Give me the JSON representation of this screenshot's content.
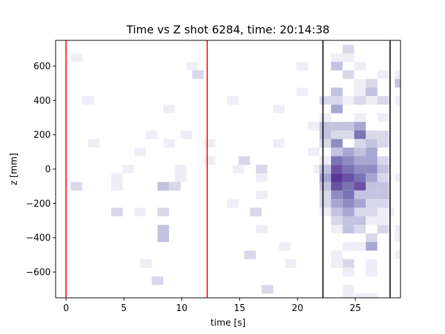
{
  "chart_data": {
    "type": "heatmap",
    "title": "Time vs Z shot 6284, time: 20:14:38",
    "xlabel": "time [s]",
    "ylabel": "z [mm]",
    "xlim": [
      -0.9,
      28.9
    ],
    "ylim": [
      -750,
      750
    ],
    "xticks": [
      0,
      5,
      10,
      15,
      20,
      25
    ],
    "yticks": [
      -600,
      -400,
      -200,
      0,
      200,
      400,
      600
    ],
    "colormap": "Purples",
    "bin_width_s": 1.0,
    "bin_height_mm": 50,
    "vlines": [
      {
        "x": 0.0,
        "color": "#ff0000"
      },
      {
        "x": 12.2,
        "color": "#ff0000"
      },
      {
        "x": 22.2,
        "color": "#000000"
      },
      {
        "x": 28.0,
        "color": "#000000"
      }
    ],
    "cells": [
      [
        0.4,
        650,
        1
      ],
      [
        0.4,
        -100,
        2
      ],
      [
        1.4,
        400,
        1
      ],
      [
        1.9,
        150,
        1
      ],
      [
        3.9,
        -50,
        1
      ],
      [
        3.9,
        -250,
        2
      ],
      [
        3.9,
        -100,
        1
      ],
      [
        4.9,
        0,
        1
      ],
      [
        5.9,
        100,
        1
      ],
      [
        5.9,
        -250,
        1
      ],
      [
        6.4,
        -550,
        1
      ],
      [
        6.9,
        200,
        1
      ],
      [
        7.4,
        -650,
        2
      ],
      [
        7.9,
        -100,
        3
      ],
      [
        7.9,
        -250,
        2
      ],
      [
        7.9,
        -350,
        3
      ],
      [
        7.9,
        -400,
        3
      ],
      [
        8.4,
        150,
        1
      ],
      [
        8.9,
        -100,
        2
      ],
      [
        8.4,
        350,
        1
      ],
      [
        9.4,
        -50,
        1
      ],
      [
        9.4,
        0,
        1
      ],
      [
        9.9,
        200,
        1
      ],
      [
        10.4,
        600,
        1
      ],
      [
        10.9,
        550,
        2
      ],
      [
        11.9,
        150,
        1
      ],
      [
        11.9,
        50,
        1
      ],
      [
        13.9,
        400,
        1
      ],
      [
        13.9,
        -200,
        1
      ],
      [
        14.4,
        0,
        1
      ],
      [
        14.9,
        50,
        2
      ],
      [
        15.4,
        -500,
        2
      ],
      [
        15.9,
        -250,
        2
      ],
      [
        16.4,
        0,
        2
      ],
      [
        16.4,
        -50,
        1
      ],
      [
        16.4,
        -150,
        1
      ],
      [
        16.4,
        -350,
        1
      ],
      [
        16.9,
        -700,
        2
      ],
      [
        17.9,
        350,
        1
      ],
      [
        17.9,
        150,
        1
      ],
      [
        18.4,
        -450,
        1
      ],
      [
        18.9,
        -550,
        1
      ],
      [
        19.9,
        600,
        1
      ],
      [
        19.9,
        450,
        1
      ],
      [
        20.9,
        250,
        1
      ],
      [
        20.9,
        100,
        1
      ],
      [
        21.4,
        0,
        1
      ],
      [
        21.9,
        400,
        2
      ],
      [
        21.9,
        300,
        1
      ],
      [
        21.9,
        250,
        3
      ],
      [
        21.9,
        200,
        3
      ],
      [
        21.9,
        150,
        2
      ],
      [
        21.9,
        50,
        1
      ],
      [
        21.9,
        0,
        3
      ],
      [
        21.9,
        -50,
        4
      ],
      [
        21.9,
        -100,
        3
      ],
      [
        21.9,
        -150,
        2
      ],
      [
        21.9,
        -200,
        2
      ],
      [
        21.9,
        -250,
        1
      ],
      [
        22.9,
        650,
        1
      ],
      [
        22.9,
        600,
        3
      ],
      [
        22.9,
        450,
        3
      ],
      [
        22.9,
        400,
        2
      ],
      [
        22.9,
        350,
        4
      ],
      [
        22.9,
        250,
        3
      ],
      [
        22.9,
        200,
        2
      ],
      [
        22.9,
        150,
        5
      ],
      [
        22.9,
        100,
        3
      ],
      [
        22.9,
        50,
        6
      ],
      [
        22.9,
        0,
        7
      ],
      [
        22.9,
        -50,
        8
      ],
      [
        22.9,
        -100,
        7
      ],
      [
        22.9,
        -150,
        5
      ],
      [
        22.9,
        -200,
        4
      ],
      [
        22.9,
        -250,
        3
      ],
      [
        22.9,
        -300,
        2
      ],
      [
        22.9,
        -350,
        1
      ],
      [
        22.9,
        -500,
        1
      ],
      [
        22.9,
        -550,
        1
      ],
      [
        23.9,
        700,
        2
      ],
      [
        23.9,
        650,
        1
      ],
      [
        23.9,
        550,
        2
      ],
      [
        23.9,
        400,
        1
      ],
      [
        23.9,
        250,
        3
      ],
      [
        23.9,
        200,
        2
      ],
      [
        23.9,
        100,
        4
      ],
      [
        23.9,
        50,
        5
      ],
      [
        23.9,
        0,
        6
      ],
      [
        23.9,
        -50,
        7
      ],
      [
        23.9,
        -100,
        6
      ],
      [
        23.9,
        -150,
        6
      ],
      [
        23.9,
        -200,
        5
      ],
      [
        23.9,
        -250,
        4
      ],
      [
        23.9,
        -300,
        3
      ],
      [
        23.9,
        -350,
        3
      ],
      [
        23.9,
        -450,
        1
      ],
      [
        23.9,
        -550,
        2
      ],
      [
        23.9,
        -600,
        1
      ],
      [
        23.9,
        -700,
        1
      ],
      [
        23.9,
        -750,
        1
      ],
      [
        24.9,
        600,
        1
      ],
      [
        24.9,
        500,
        1
      ],
      [
        24.9,
        450,
        1
      ],
      [
        24.9,
        400,
        2
      ],
      [
        24.9,
        300,
        1
      ],
      [
        24.9,
        250,
        4
      ],
      [
        24.9,
        200,
        6
      ],
      [
        24.9,
        150,
        2
      ],
      [
        24.9,
        100,
        3
      ],
      [
        24.9,
        50,
        4
      ],
      [
        24.9,
        0,
        5
      ],
      [
        24.9,
        -50,
        6
      ],
      [
        24.9,
        -100,
        7
      ],
      [
        24.9,
        -150,
        3
      ],
      [
        24.9,
        -200,
        4
      ],
      [
        24.9,
        -250,
        2
      ],
      [
        24.9,
        -300,
        3
      ],
      [
        24.9,
        -350,
        2
      ],
      [
        24.9,
        -450,
        1
      ],
      [
        24.9,
        -750,
        1
      ],
      [
        25.9,
        500,
        2
      ],
      [
        25.9,
        450,
        3
      ],
      [
        25.9,
        400,
        1
      ],
      [
        25.9,
        200,
        2
      ],
      [
        25.9,
        150,
        3
      ],
      [
        25.9,
        100,
        4
      ],
      [
        25.9,
        50,
        4
      ],
      [
        25.9,
        0,
        5
      ],
      [
        25.9,
        -50,
        4
      ],
      [
        25.9,
        -100,
        3
      ],
      [
        25.9,
        -150,
        3
      ],
      [
        25.9,
        -200,
        2
      ],
      [
        25.9,
        -250,
        2
      ],
      [
        25.9,
        -300,
        1
      ],
      [
        25.9,
        -400,
        2
      ],
      [
        25.9,
        -450,
        4
      ],
      [
        25.9,
        -550,
        1
      ],
      [
        25.9,
        -600,
        1
      ],
      [
        25.9,
        -750,
        1
      ],
      [
        26.9,
        550,
        1
      ],
      [
        26.9,
        400,
        2
      ],
      [
        26.9,
        300,
        1
      ],
      [
        26.9,
        200,
        2
      ],
      [
        26.9,
        150,
        2
      ],
      [
        26.9,
        50,
        2
      ],
      [
        26.9,
        0,
        3
      ],
      [
        26.9,
        -50,
        2
      ],
      [
        26.9,
        -100,
        3
      ],
      [
        26.9,
        -150,
        3
      ],
      [
        26.9,
        -200,
        2
      ],
      [
        26.9,
        -250,
        1
      ],
      [
        26.9,
        -300,
        1
      ],
      [
        26.9,
        -350,
        2
      ],
      [
        27.4,
        -250,
        1
      ],
      [
        28.4,
        550,
        1
      ],
      [
        28.4,
        500,
        3
      ],
      [
        28.4,
        400,
        1
      ],
      [
        28.4,
        -50,
        1
      ],
      [
        28.4,
        -350,
        1
      ],
      [
        28.4,
        -400,
        1
      ],
      [
        28.4,
        -500,
        1
      ]
    ]
  }
}
